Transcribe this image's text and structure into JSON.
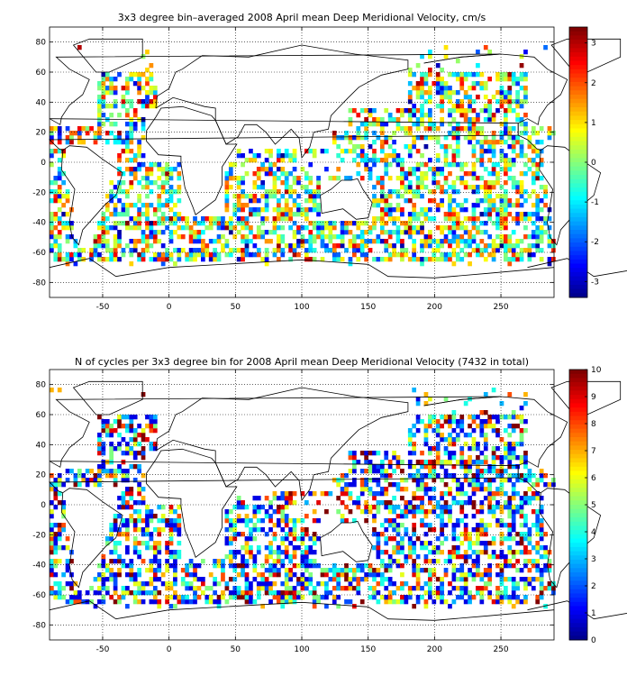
{
  "chart_data": [
    {
      "type": "heatmap",
      "title": "3x3 degree bin–averaged 2008 April mean Deep Meridional Velocity, cm/s",
      "colormap": "jet",
      "xlim": [
        -90,
        290
      ],
      "ylim": [
        -90,
        90
      ],
      "x_ticks": [
        "-50",
        "0",
        "50",
        "100",
        "150",
        "200",
        "250"
      ],
      "y_ticks": [
        "80",
        "60",
        "40",
        "20",
        "0",
        "-20",
        "-40",
        "-60",
        "-80"
      ],
      "clim": [
        -3.4,
        3.4
      ],
      "colorbar_ticks": [
        "3",
        "2",
        "1",
        "0",
        "-1",
        "-2",
        "-3"
      ],
      "grid": true,
      "bin_size_deg": 3
    },
    {
      "type": "heatmap",
      "title": "N of cycles per 3x3 degree bin for 2008 April mean Deep Meridional Velocity (7432 in total)",
      "colormap": "jet",
      "xlim": [
        -90,
        290
      ],
      "ylim": [
        -90,
        90
      ],
      "x_ticks": [
        "-50",
        "0",
        "50",
        "100",
        "150",
        "200",
        "250"
      ],
      "y_ticks": [
        "80",
        "60",
        "40",
        "20",
        "0",
        "-20",
        "-40",
        "-60",
        "-80"
      ],
      "clim": [
        0,
        10
      ],
      "colorbar_ticks": [
        "10",
        "9",
        "8",
        "7",
        "6",
        "5",
        "4",
        "3",
        "2",
        "1",
        "0"
      ],
      "grid": true,
      "bin_size_deg": 3,
      "total_cycles": 7432
    }
  ]
}
